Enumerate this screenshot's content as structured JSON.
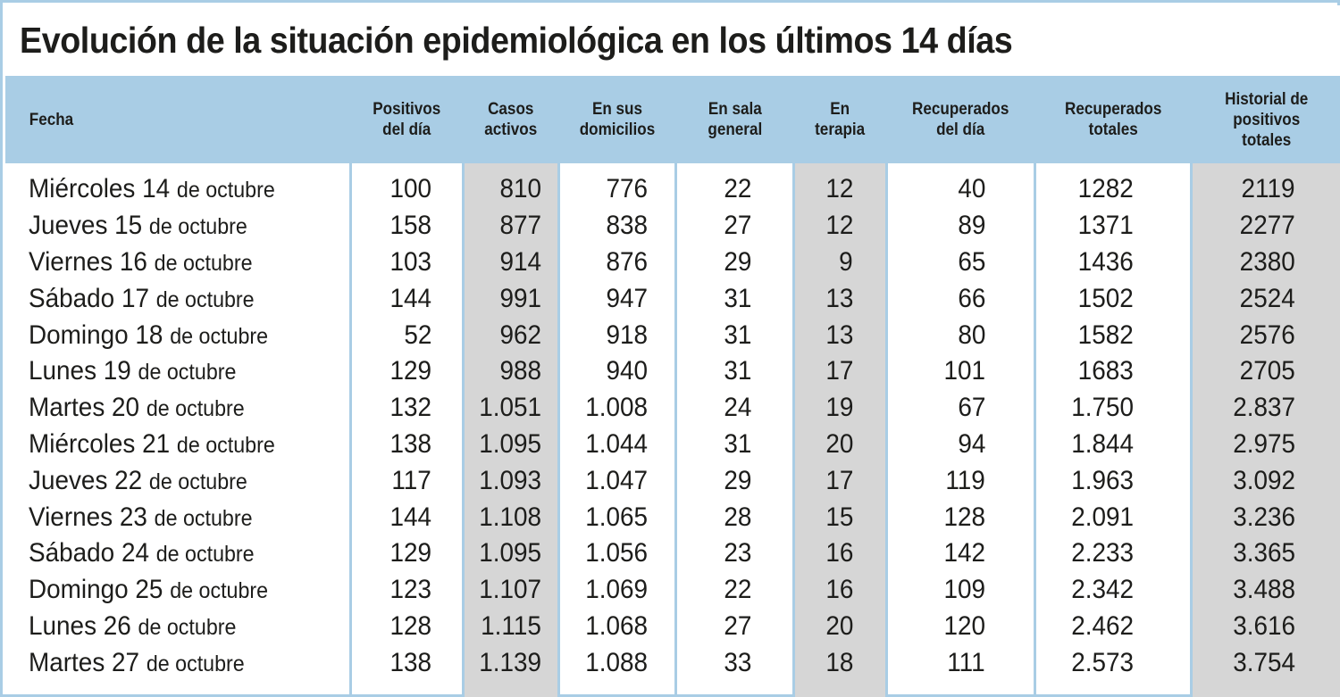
{
  "title": "Evolución de la situación epidemiológica en los últimos 14 días",
  "colors": {
    "header_band": "#a9cde5",
    "shaded_columns": "#d6d6d6",
    "text": "#1d1d1b"
  },
  "chart_data": {
    "type": "table",
    "title": "Evolución de la situación epidemiológica en los últimos 14 días",
    "columns": [
      "Fecha",
      "Positivos\ndel día",
      "Casos\nactivos",
      "En sus\ndomicilios",
      "En sala\ngeneral",
      "En\nterapia",
      "Recuperados\ndel día",
      "Recuperados\ntotales",
      "Historial de\npositivos\ntotales"
    ],
    "shaded_columns": [
      "Casos\nactivos",
      "En\nterapia",
      "Historial de\npositivos\ntotales"
    ],
    "rows": [
      {
        "day": "Miércoles 14",
        "month": "de octubre",
        "values": [
          "100",
          "810",
          "776",
          "22",
          "12",
          "40",
          "1282",
          "2119"
        ]
      },
      {
        "day": "Jueves 15",
        "month": "de octubre",
        "values": [
          "158",
          "877",
          "838",
          "27",
          "12",
          "89",
          "1371",
          "2277"
        ]
      },
      {
        "day": "Viernes 16",
        "month": "de octubre",
        "values": [
          "103",
          "914",
          "876",
          "29",
          "9",
          "65",
          "1436",
          "2380"
        ]
      },
      {
        "day": "Sábado 17",
        "month": "de octubre",
        "values": [
          "144",
          "991",
          "947",
          "31",
          "13",
          "66",
          "1502",
          "2524"
        ]
      },
      {
        "day": "Domingo 18",
        "month": "de octubre",
        "values": [
          "52",
          "962",
          "918",
          "31",
          "13",
          "80",
          "1582",
          "2576"
        ]
      },
      {
        "day": "Lunes 19",
        "month": "de octubre",
        "values": [
          "129",
          "988",
          "940",
          "31",
          "17",
          "101",
          "1683",
          "2705"
        ]
      },
      {
        "day": "Martes 20",
        "month": "de octubre",
        "values": [
          "132",
          "1.051",
          "1.008",
          "24",
          "19",
          "67",
          "1.750",
          "2.837"
        ]
      },
      {
        "day": "Miércoles 21",
        "month": "de octubre",
        "values": [
          "138",
          "1.095",
          "1.044",
          "31",
          "20",
          "94",
          "1.844",
          "2.975"
        ]
      },
      {
        "day": "Jueves 22",
        "month": "de octubre",
        "values": [
          "117",
          "1.093",
          "1.047",
          "29",
          "17",
          "119",
          "1.963",
          "3.092"
        ]
      },
      {
        "day": "Viernes 23",
        "month": "de octubre",
        "values": [
          "144",
          "1.108",
          "1.065",
          "28",
          "15",
          "128",
          "2.091",
          "3.236"
        ]
      },
      {
        "day": "Sábado 24",
        "month": "de octubre",
        "values": [
          "129",
          "1.095",
          "1.056",
          "23",
          "16",
          "142",
          "2.233",
          "3.365"
        ]
      },
      {
        "day": "Domingo 25",
        "month": "de octubre",
        "values": [
          "123",
          "1.107",
          "1.069",
          "22",
          "16",
          "109",
          "2.342",
          "3.488"
        ]
      },
      {
        "day": "Lunes 26",
        "month": "de octubre",
        "values": [
          "128",
          "1.115",
          "1.068",
          "27",
          "20",
          "120",
          "2.462",
          "3.616"
        ]
      },
      {
        "day": "Martes 27",
        "month": "de octubre",
        "values": [
          "138",
          "1.139",
          "1.088",
          "33",
          "18",
          "111",
          "2.573",
          "3.754"
        ]
      }
    ]
  }
}
